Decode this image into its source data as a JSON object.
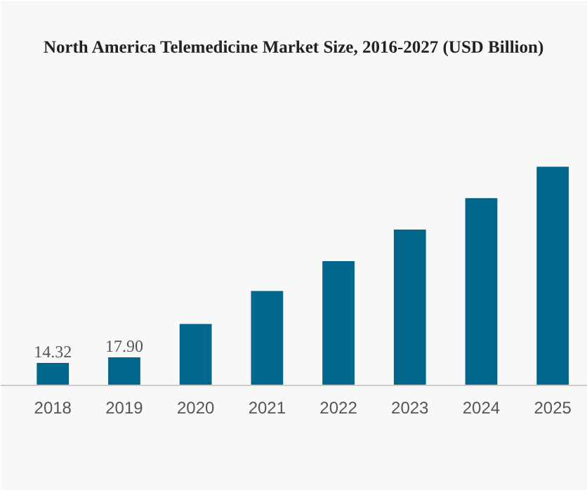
{
  "chart_data": {
    "type": "bar",
    "title": "North America Telemedicine Market Size, 2016-2027 (USD Billion)",
    "categories": [
      "2018",
      "2019",
      "2020",
      "2021",
      "2022",
      "2023",
      "2024",
      "2025"
    ],
    "values": [
      14.32,
      17.9,
      39,
      60,
      79,
      99,
      119,
      139
    ],
    "value_labels": [
      "14.32",
      "17.90",
      null,
      null,
      null,
      null,
      null,
      null
    ],
    "color": "#00668a",
    "grid": false
  }
}
